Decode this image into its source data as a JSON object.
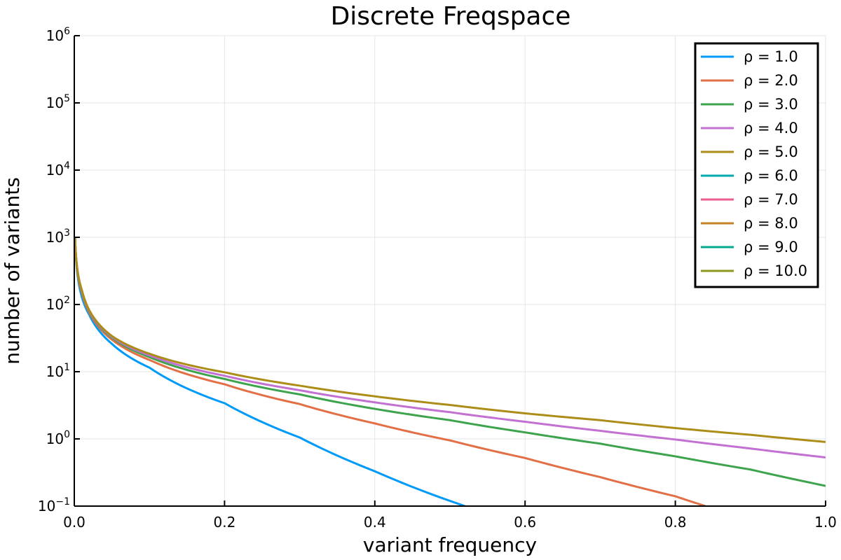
{
  "chart_data": {
    "type": "line",
    "title": "Discrete Freqspace",
    "xlabel": "variant frequency",
    "ylabel": "number of variants",
    "xlim": [
      0.0,
      1.0
    ],
    "ylim": [
      0.1,
      1000000
    ],
    "yscale": "log",
    "grid": true,
    "legend_position": "top-right",
    "x_ticks": [
      {
        "value": 0.0,
        "label": "0.0"
      },
      {
        "value": 0.2,
        "label": "0.2"
      },
      {
        "value": 0.4,
        "label": "0.4"
      },
      {
        "value": 0.6,
        "label": "0.6"
      },
      {
        "value": 0.8,
        "label": "0.8"
      },
      {
        "value": 1.0,
        "label": "1.0"
      }
    ],
    "y_ticks": [
      {
        "value": 0.1,
        "base": "10",
        "exp": "−1"
      },
      {
        "value": 1,
        "base": "10",
        "exp": "0"
      },
      {
        "value": 10,
        "base": "10",
        "exp": "1"
      },
      {
        "value": 100,
        "base": "10",
        "exp": "2"
      },
      {
        "value": 1000,
        "base": "10",
        "exp": "3"
      },
      {
        "value": 10000,
        "base": "10",
        "exp": "4"
      },
      {
        "value": 100000,
        "base": "10",
        "exp": "5"
      },
      {
        "value": 1000000,
        "base": "10",
        "exp": "6"
      }
    ],
    "series": [
      {
        "name": "ρ = 1.0",
        "color": "#009af9",
        "x": [
          0.001,
          0.01,
          0.02,
          0.05,
          0.1,
          0.2,
          0.3,
          0.4,
          0.52
        ],
        "y": [
          1000,
          130,
          70,
          26,
          11.5,
          3.4,
          1.05,
          0.33,
          0.1
        ]
      },
      {
        "name": "ρ = 2.0",
        "color": "#e26f46",
        "x": [
          0.001,
          0.01,
          0.02,
          0.05,
          0.1,
          0.2,
          0.3,
          0.4,
          0.5,
          0.6,
          0.7,
          0.8,
          0.84
        ],
        "y": [
          1000,
          150,
          75,
          30,
          15,
          6.5,
          3.3,
          1.7,
          0.95,
          0.52,
          0.27,
          0.14,
          0.1
        ]
      },
      {
        "name": "ρ = 3.0",
        "color": "#3da44d",
        "x": [
          0.001,
          0.01,
          0.02,
          0.05,
          0.1,
          0.2,
          0.3,
          0.4,
          0.5,
          0.6,
          0.7,
          0.8,
          0.9,
          1.0
        ],
        "y": [
          1000,
          160,
          78,
          32,
          16.5,
          7.8,
          4.6,
          2.8,
          1.9,
          1.25,
          0.85,
          0.55,
          0.35,
          0.2
        ]
      },
      {
        "name": "ρ = 4.0",
        "color": "#c271d2",
        "x": [
          0.001,
          0.01,
          0.02,
          0.05,
          0.1,
          0.2,
          0.3,
          0.4,
          0.5,
          0.6,
          0.7,
          0.8,
          0.9,
          1.0
        ],
        "y": [
          1000,
          163,
          80,
          33,
          17.5,
          8.7,
          5.3,
          3.5,
          2.5,
          1.8,
          1.32,
          0.98,
          0.72,
          0.53
        ]
      },
      {
        "name": "ρ = 5.0",
        "color": "#ac8d18",
        "x": [
          0.001,
          0.01,
          0.02,
          0.05,
          0.1,
          0.2,
          0.3,
          0.4,
          0.5,
          0.6,
          0.7,
          0.8,
          0.9,
          1.0
        ],
        "y": [
          1000,
          165,
          82,
          34,
          18.5,
          9.8,
          6.2,
          4.3,
          3.2,
          2.4,
          1.9,
          1.45,
          1.15,
          0.9
        ]
      },
      {
        "name": "ρ = 6.0",
        "color": "#00a9ad",
        "x": [],
        "y": []
      },
      {
        "name": "ρ = 7.0",
        "color": "#ed5d92",
        "x": [],
        "y": []
      },
      {
        "name": "ρ = 8.0",
        "color": "#c68225",
        "x": [],
        "y": []
      },
      {
        "name": "ρ = 9.0",
        "color": "#00a98d",
        "x": [],
        "y": []
      },
      {
        "name": "ρ = 10.0",
        "color": "#8e971d",
        "x": [],
        "y": []
      }
    ]
  }
}
